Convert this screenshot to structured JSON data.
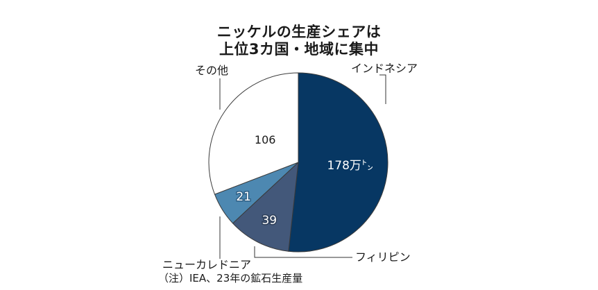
{
  "title_line1": "ニッケルの生産シェアは",
  "title_line2": "上位3カ国・地域に集中",
  "note": "（注）IEA、23年の鉱石生産量",
  "chart_data": {
    "type": "pie",
    "title": "ニッケルの生産シェアは 上位3カ国・地域に集中",
    "start": "12 o'clock",
    "direction": "clockwise",
    "slices": [
      {
        "category": "インドネシア",
        "value": 178,
        "value_label": "178万㌧",
        "color": "#073763"
      },
      {
        "category": "フィリピン",
        "value": 39,
        "value_label": "39",
        "color": "#43587a"
      },
      {
        "category": "ニューカレドニア",
        "value": 21,
        "value_label": "21",
        "color": "#4d88b1"
      },
      {
        "category": "その他",
        "value": 106,
        "value_label": "106",
        "color": "#ffffff"
      }
    ]
  }
}
